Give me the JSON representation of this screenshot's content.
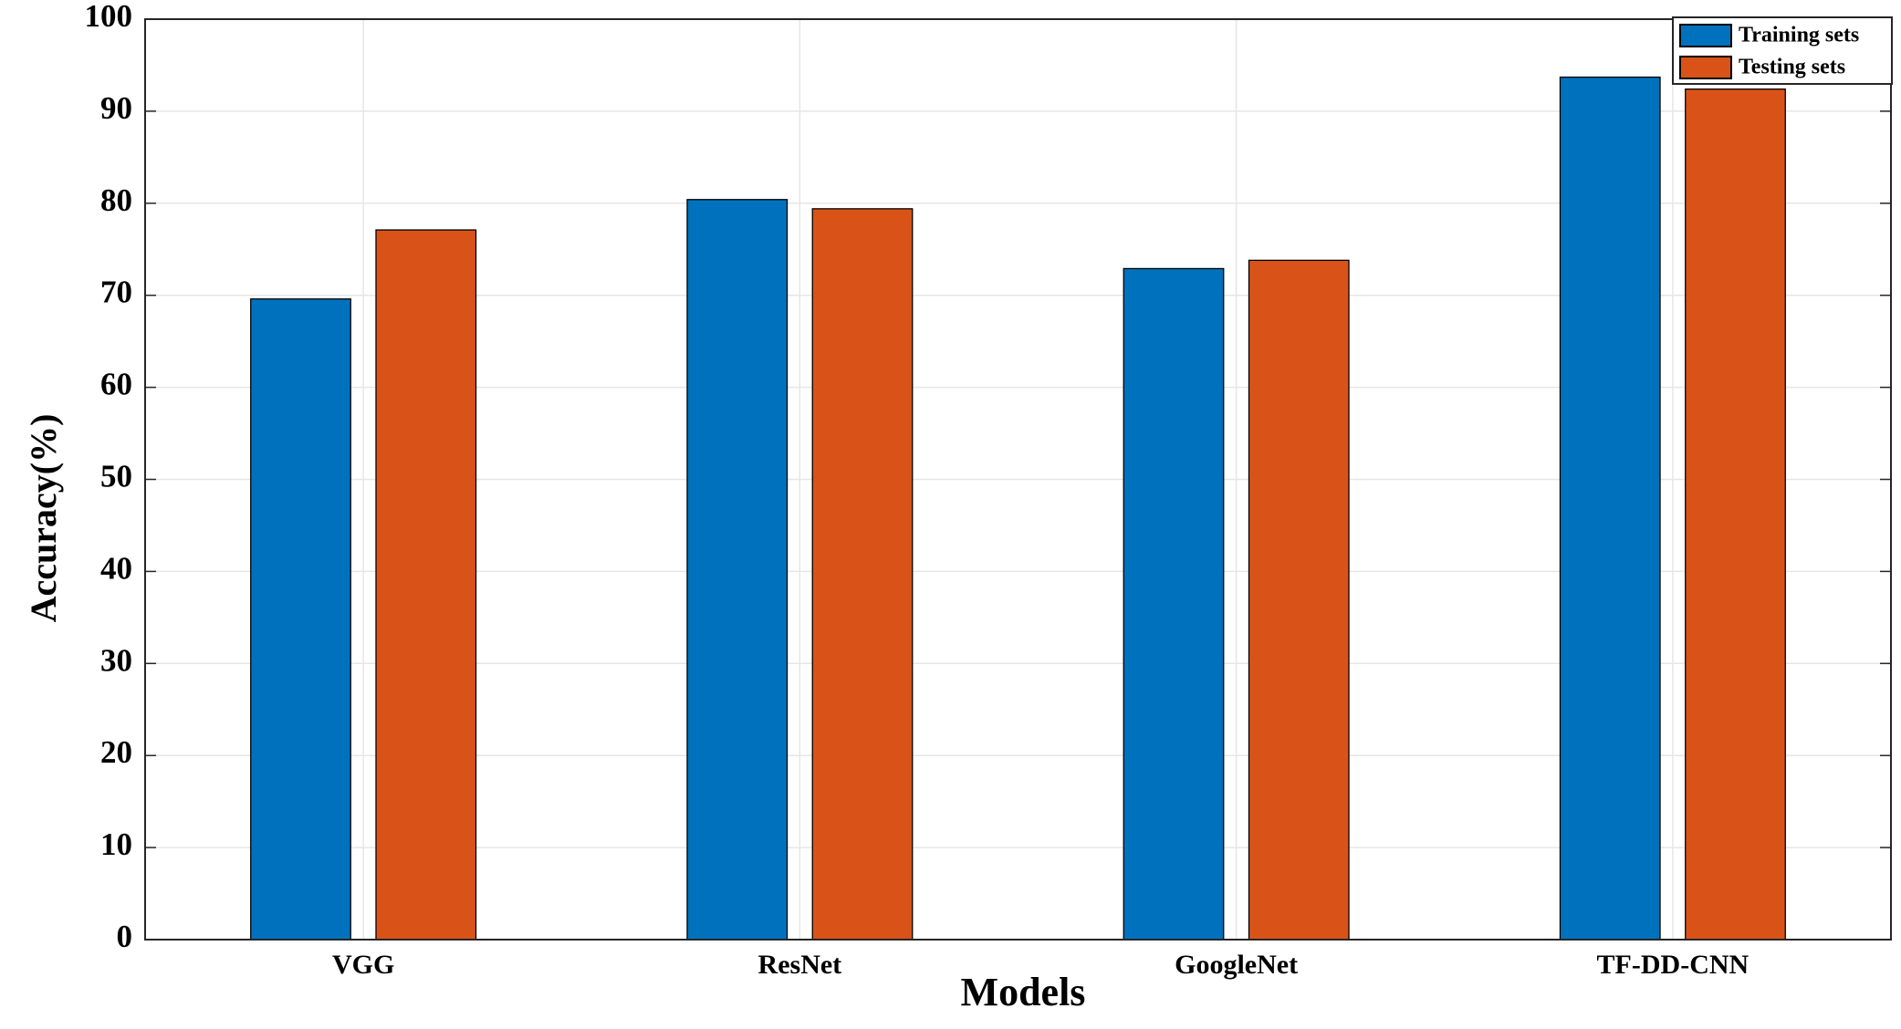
{
  "chart_data": {
    "type": "bar",
    "x_label": "Models",
    "y_label": "Accuracy(%)",
    "categories": [
      "VGG",
      "ResNet",
      "GoogleNet",
      "TF-DD-CNN"
    ],
    "series": [
      {
        "name": "Training sets",
        "color": "#0072bd",
        "values": [
          69.6,
          80.4,
          72.9,
          93.7
        ]
      },
      {
        "name": "Testing sets",
        "color": "#d95319",
        "values": [
          77.1,
          79.4,
          73.8,
          92.4
        ]
      }
    ],
    "ylim": [
      0,
      100
    ],
    "yticks": [
      0,
      10,
      20,
      30,
      40,
      50,
      60,
      70,
      80,
      90,
      100
    ],
    "grid": true,
    "legend": "top-right"
  }
}
